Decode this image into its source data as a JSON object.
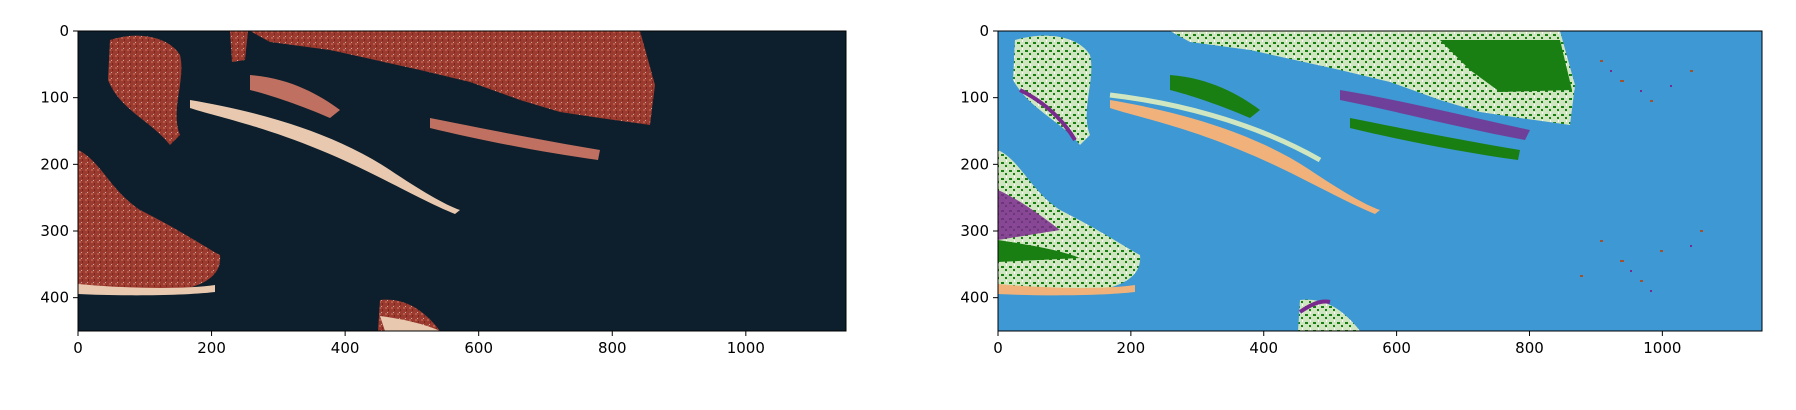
{
  "panels": [
    {
      "name": "satellite-rgb-panel",
      "image_description": "Satellite false-color composite: coastline, sand spits and marsh islands on dark water",
      "x_ticks": [
        "0",
        "200",
        "400",
        "600",
        "800",
        "1000"
      ],
      "y_ticks": [
        "0",
        "100",
        "200",
        "300",
        "400"
      ],
      "x_range": [
        0,
        1150
      ],
      "y_range": [
        450,
        0
      ]
    },
    {
      "name": "land-cover-classification-panel",
      "image_description": "Land-cover classification map of the same scene",
      "x_ticks": [
        "0",
        "200",
        "400",
        "600",
        "800",
        "1000"
      ],
      "y_ticks": [
        "0",
        "100",
        "200",
        "300",
        "400"
      ],
      "x_range": [
        0,
        1150
      ],
      "y_range": [
        450,
        0
      ]
    }
  ],
  "colors": {
    "water_dark": "#0b1a26",
    "land_red": "#9b3a2e",
    "sand_light": "#e8c9b0",
    "class_water": "#3d98d3",
    "class_forest": "#1a7f12",
    "class_grass": "#cfe6c0",
    "class_sand": "#f0b27a",
    "class_marsh": "#7a2a8c",
    "class_mud": "#a0522d",
    "class_white": "#ffffff"
  }
}
